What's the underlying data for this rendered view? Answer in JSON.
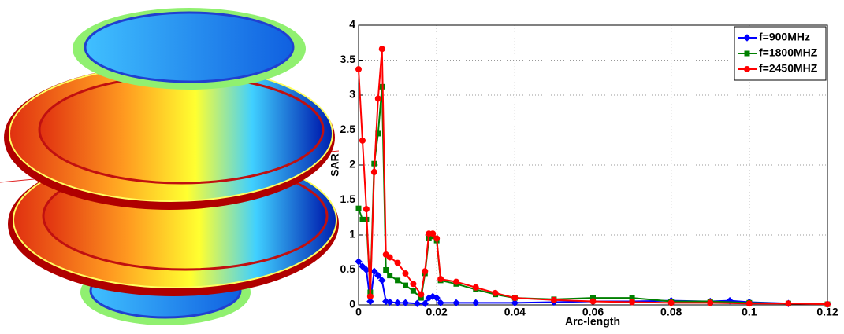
{
  "chart_data": {
    "type": "line",
    "xlabel": "Arc-length",
    "ylabel": "SAR",
    "xlim": [
      0,
      0.12
    ],
    "xticks": [
      0,
      0.02,
      0.04,
      0.06,
      0.08,
      0.1,
      0.12
    ],
    "ylim": [
      0,
      4
    ],
    "yticks": [
      0,
      0.5,
      1,
      1.5,
      2,
      2.5,
      3,
      3.5,
      4
    ],
    "grid": true,
    "legend": "top-right",
    "series": [
      {
        "name": "f=900MHz",
        "color": "#0000ff",
        "marker": "diamond",
        "x": [
          0,
          0.001,
          0.002,
          0.003,
          0.004,
          0.005,
          0.006,
          0.007,
          0.008,
          0.01,
          0.012,
          0.015,
          0.017,
          0.018,
          0.019,
          0.02,
          0.021,
          0.025,
          0.03,
          0.04,
          0.05,
          0.06,
          0.07,
          0.08,
          0.09,
          0.095,
          0.1,
          0.11,
          0.12
        ],
        "values": [
          0.62,
          0.55,
          0.5,
          0.05,
          0.48,
          0.42,
          0.35,
          0.05,
          0.04,
          0.03,
          0.03,
          0.02,
          0.02,
          0.1,
          0.12,
          0.1,
          0.03,
          0.03,
          0.03,
          0.03,
          0.04,
          0.05,
          0.05,
          0.06,
          0.05,
          0.06,
          0.04,
          0.02,
          0.01
        ]
      },
      {
        "name": "f=1800MHZ",
        "color": "#008000",
        "marker": "square",
        "x": [
          0,
          0.001,
          0.002,
          0.003,
          0.004,
          0.005,
          0.006,
          0.007,
          0.008,
          0.01,
          0.012,
          0.014,
          0.016,
          0.017,
          0.018,
          0.019,
          0.02,
          0.021,
          0.025,
          0.03,
          0.035,
          0.04,
          0.05,
          0.06,
          0.07,
          0.08,
          0.09,
          0.1,
          0.11,
          0.12
        ],
        "values": [
          1.38,
          1.22,
          1.22,
          0.18,
          2.02,
          2.45,
          3.12,
          0.5,
          0.42,
          0.35,
          0.28,
          0.2,
          0.1,
          0.45,
          0.95,
          0.98,
          0.92,
          0.35,
          0.3,
          0.22,
          0.15,
          0.1,
          0.08,
          0.1,
          0.1,
          0.05,
          0.05,
          0.03,
          0.02,
          0.01
        ]
      },
      {
        "name": "f=2450MHZ",
        "color": "#ff0000",
        "marker": "circle",
        "x": [
          0,
          0.001,
          0.002,
          0.003,
          0.004,
          0.005,
          0.006,
          0.007,
          0.008,
          0.01,
          0.012,
          0.014,
          0.016,
          0.017,
          0.018,
          0.019,
          0.02,
          0.021,
          0.025,
          0.03,
          0.035,
          0.04,
          0.05,
          0.06,
          0.07,
          0.08,
          0.09,
          0.1,
          0.11,
          0.12
        ],
        "values": [
          3.37,
          2.35,
          1.37,
          0.12,
          1.9,
          2.95,
          3.66,
          0.72,
          0.68,
          0.6,
          0.45,
          0.3,
          0.15,
          0.48,
          1.02,
          1.02,
          0.95,
          0.37,
          0.33,
          0.25,
          0.17,
          0.1,
          0.07,
          0.05,
          0.04,
          0.03,
          0.03,
          0.02,
          0.02,
          0.01
        ]
      }
    ]
  }
}
